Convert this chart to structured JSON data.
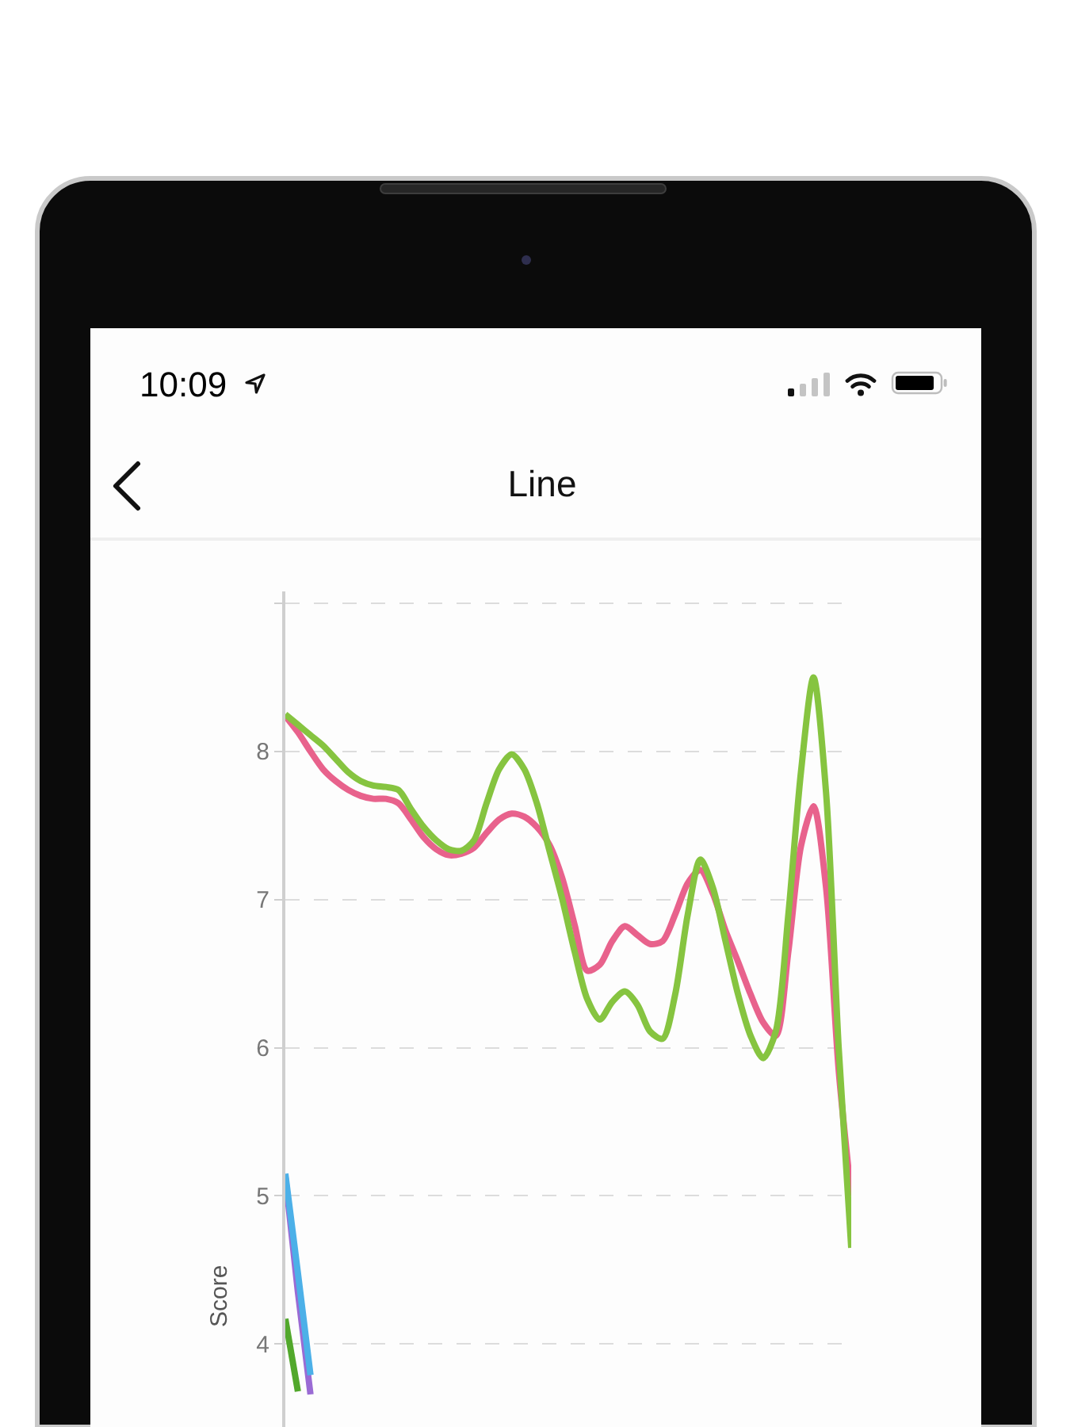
{
  "chart_data": {
    "type": "line",
    "title": "Line",
    "ylabel": "Score",
    "annotations": [
      "10:09"
    ],
    "categories": [
      null,
      null,
      null,
      null,
      null,
      null,
      null,
      null,
      null,
      null,
      null,
      null,
      null,
      null,
      null,
      null,
      null,
      null,
      null,
      null,
      null,
      null,
      null,
      null,
      null,
      null,
      null,
      null,
      null,
      null,
      null,
      null,
      null,
      null,
      null,
      null,
      null,
      null,
      null,
      null,
      null,
      null,
      null,
      null,
      null,
      null
    ],
    "series": [
      {
        "color": "#e8628c",
        "values": [
          8.24,
          8.13,
          8.0,
          7.88,
          7.8,
          7.74,
          7.7,
          7.68,
          7.68,
          7.65,
          7.54,
          7.42,
          7.34,
          7.3,
          7.31,
          7.35,
          7.45,
          7.54,
          7.58,
          7.56,
          7.49,
          7.37,
          7.15,
          6.83,
          6.52,
          6.56,
          6.72,
          6.82,
          6.76,
          6.7,
          6.72,
          6.9,
          7.11,
          7.2,
          7.04,
          6.79,
          6.58,
          6.36,
          6.17,
          6.08,
          6.65,
          7.36,
          7.63,
          7.08,
          5.85,
          5.0
        ]
      },
      {
        "color": "#86c440",
        "values": [
          8.25,
          8.18,
          8.11,
          8.04,
          7.95,
          7.86,
          7.8,
          7.77,
          7.76,
          7.74,
          7.61,
          7.49,
          7.4,
          7.34,
          7.33,
          7.4,
          7.65,
          7.88,
          7.98,
          7.88,
          7.65,
          7.33,
          7.01,
          6.65,
          6.33,
          6.19,
          6.31,
          6.38,
          6.29,
          6.11,
          6.06,
          6.36,
          6.9,
          7.27,
          7.08,
          6.72,
          6.36,
          6.08,
          5.93,
          6.11,
          6.9,
          7.86,
          8.5,
          7.72,
          6.0,
          4.65
        ]
      },
      {
        "color": "#9a6bd4",
        "values": [
          5.13,
          4.35,
          3.66,
          null,
          null,
          null,
          null,
          null,
          null,
          null,
          null,
          null,
          null,
          null,
          null,
          null,
          null,
          null,
          null,
          null,
          null,
          null,
          null,
          null,
          null,
          null,
          null,
          null,
          null,
          null,
          null,
          null,
          null,
          null,
          null,
          null,
          null,
          null,
          null,
          null,
          null,
          null,
          null,
          null,
          null,
          null
        ]
      },
      {
        "color": "#4cb0e8",
        "values": [
          5.15,
          4.48,
          3.79,
          null,
          null,
          null,
          null,
          null,
          null,
          null,
          null,
          null,
          null,
          null,
          null,
          null,
          null,
          null,
          null,
          null,
          null,
          null,
          null,
          null,
          null,
          null,
          null,
          null,
          null,
          null,
          null,
          null,
          null,
          null,
          null,
          null,
          null,
          null,
          null,
          null,
          null,
          null,
          null,
          null,
          null,
          null
        ]
      },
      {
        "color": "#52a82c",
        "values": [
          4.17,
          3.68,
          null,
          null,
          null,
          null,
          null,
          null,
          null,
          null,
          null,
          null,
          null,
          null,
          null,
          null,
          null,
          null,
          null,
          null,
          null,
          null,
          null,
          null,
          null,
          null,
          null,
          null,
          null,
          null,
          null,
          null,
          null,
          null,
          null,
          null,
          null,
          null,
          null,
          null,
          null,
          null,
          null,
          null,
          null,
          null
        ]
      }
    ],
    "ylim": [
      3.44,
      9.08
    ],
    "yticks": [
      4,
      5,
      6,
      7,
      8,
      {
        "value": 9,
        "label": null
      }
    ],
    "grid": "y",
    "tick_labels": "y"
  }
}
